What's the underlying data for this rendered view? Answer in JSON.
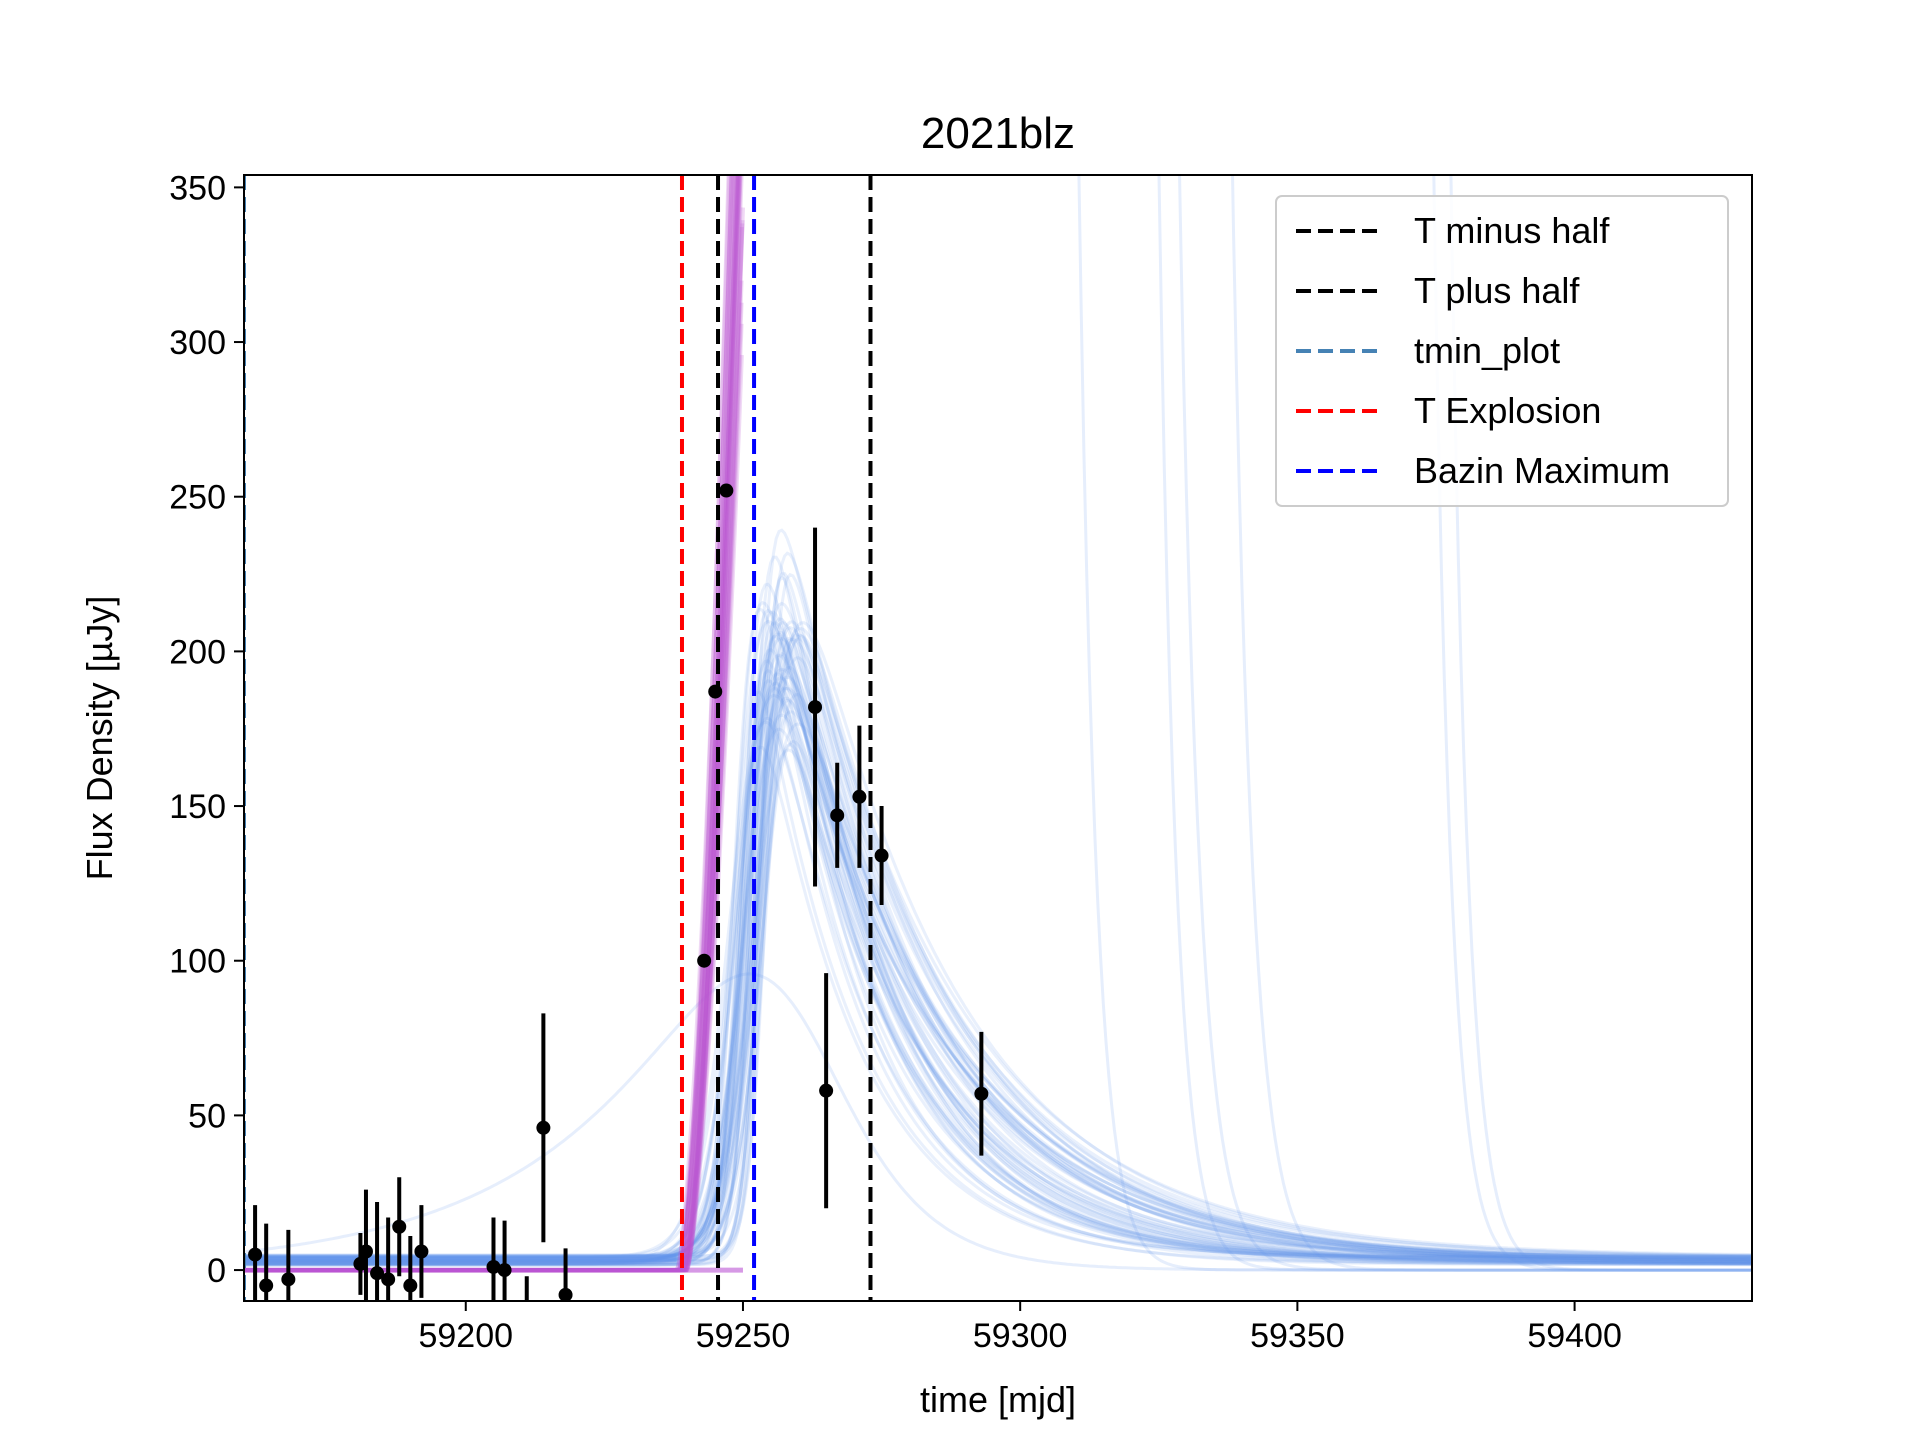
{
  "chart_data": {
    "type": "line",
    "title": "2021blz",
    "xlabel": "time [mjd]",
    "ylabel": "Flux Density [µJy]",
    "xlim": [
      59160,
      59432
    ],
    "ylim": [
      -10,
      354
    ],
    "x_ticks": [
      59200,
      59250,
      59300,
      59350,
      59400
    ],
    "y_ticks": [
      0,
      50,
      100,
      150,
      200,
      250,
      300,
      350
    ],
    "grid": false,
    "legend_position": "top-right",
    "vertical_lines": [
      {
        "name": "T minus half",
        "x": 59245.5,
        "color": "#000000",
        "style": "dashed"
      },
      {
        "name": "T plus half",
        "x": 59273,
        "color": "#000000",
        "style": "dashed"
      },
      {
        "name": "tmin_plot",
        "x": 59160,
        "color": "#4682b4",
        "style": "dashed"
      },
      {
        "name": "T Explosion",
        "x": 59239,
        "color": "#ff0000",
        "style": "dashed"
      },
      {
        "name": "Bazin Maximum",
        "x": 59252,
        "color": "#0000ff",
        "style": "dashed"
      }
    ],
    "observations": {
      "color": "#000000",
      "points": [
        {
          "x": 59162,
          "y": 5,
          "err": 16
        },
        {
          "x": 59164,
          "y": -5,
          "err": 20
        },
        {
          "x": 59168,
          "y": -3,
          "err": 16
        },
        {
          "x": 59181,
          "y": 2,
          "err": 10
        },
        {
          "x": 59182,
          "y": 6,
          "err": 20
        },
        {
          "x": 59184,
          "y": -1,
          "err": 23
        },
        {
          "x": 59186,
          "y": -3,
          "err": 20
        },
        {
          "x": 59188,
          "y": 14,
          "err": 16
        },
        {
          "x": 59190,
          "y": -5,
          "err": 16
        },
        {
          "x": 59192,
          "y": 6,
          "err": 15
        },
        {
          "x": 59205,
          "y": 1,
          "err": 16
        },
        {
          "x": 59207,
          "y": 0,
          "err": 16
        },
        {
          "x": 59211,
          "y": -12,
          "err": 10
        },
        {
          "x": 59214,
          "y": 46,
          "err": 37
        },
        {
          "x": 59218,
          "y": -8,
          "err": 15
        },
        {
          "x": 59243,
          "y": 100,
          "err": 0
        },
        {
          "x": 59245,
          "y": 187,
          "err": 0
        },
        {
          "x": 59247,
          "y": 252,
          "err": 0
        },
        {
          "x": 59263,
          "y": 182,
          "err": 58
        },
        {
          "x": 59265,
          "y": 58,
          "err": 38
        },
        {
          "x": 59267,
          "y": 147,
          "err": 17
        },
        {
          "x": 59271,
          "y": 153,
          "err": 23
        },
        {
          "x": 59275,
          "y": 134,
          "err": 16
        },
        {
          "x": 59293,
          "y": 57,
          "err": 20
        }
      ]
    },
    "bazin_samples": {
      "color": "#6495ed",
      "main": {
        "t0": 59252,
        "A": 265,
        "rise": 2.2,
        "fall": 22,
        "baseline": 3
      },
      "outliers": [
        {
          "t0": 59316,
          "A": 125,
          "rise": 40,
          "fall": 3
        },
        {
          "t0": 59330,
          "A": 143,
          "rise": 45,
          "fall": 3
        },
        {
          "t0": 59334,
          "A": 167,
          "rise": 45,
          "fall": 3.5
        },
        {
          "t0": 59344,
          "A": 147,
          "rise": 50,
          "fall": 3.5
        },
        {
          "t0": 59378,
          "A": 235,
          "rise": 60,
          "fall": 3
        },
        {
          "t0": 59381,
          "A": 242,
          "rise": 60,
          "fall": 3
        },
        {
          "t0": 59259,
          "A": 172,
          "rise": 8,
          "fall": 11
        }
      ]
    },
    "rise_samples": {
      "color": "#ba55d3",
      "baseline": 0,
      "start": 59239,
      "end": 59248
    }
  }
}
